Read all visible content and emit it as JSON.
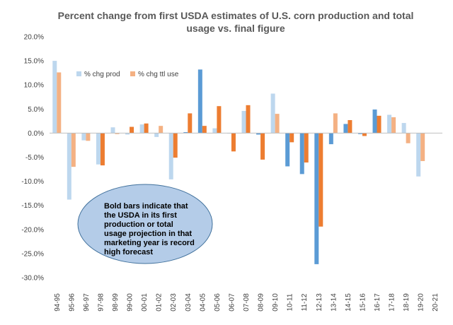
{
  "chart_data": {
    "type": "bar",
    "title_lines": [
      "Percent change from first USDA estimates of U.S. corn production and total",
      "usage vs. final figure"
    ],
    "categories": [
      "94-95",
      "95-96",
      "96-97",
      "97-98",
      "98-99",
      "99-00",
      "00-01",
      "01-02",
      "02-03",
      "03-04",
      "04-05",
      "05-06",
      "06-07",
      "07-08",
      "08-09",
      "09-10",
      "10-11",
      "11-12",
      "12-13",
      "13-14",
      "14-15",
      "15-16",
      "16-17",
      "17-18",
      "18-19",
      "19-20",
      "20-21"
    ],
    "series": [
      {
        "name": "% chg prod",
        "color_light": "#bdd7ee",
        "color_bold": "#5b9bd5",
        "values": [
          15.0,
          -13.8,
          -1.5,
          -6.5,
          1.2,
          -0.3,
          1.8,
          -0.8,
          -9.6,
          0.2,
          13.2,
          1.0,
          -0.1,
          4.6,
          -0.3,
          8.2,
          -6.9,
          -8.5,
          -27.2,
          -2.3,
          1.9,
          -0.2,
          4.9,
          3.8,
          2.1,
          -9.0,
          0.0
        ],
        "bold": [
          false,
          false,
          false,
          false,
          false,
          false,
          false,
          false,
          false,
          true,
          true,
          false,
          false,
          false,
          true,
          false,
          true,
          true,
          true,
          true,
          true,
          true,
          true,
          false,
          false,
          false,
          false
        ]
      },
      {
        "name": "% chg ttl use",
        "color_light": "#f4b183",
        "color_bold": "#ed7d31",
        "values": [
          12.6,
          -7.0,
          -1.6,
          -6.7,
          -0.2,
          1.3,
          2.0,
          1.5,
          -5.1,
          4.1,
          1.5,
          5.6,
          -3.8,
          5.8,
          -5.5,
          4.0,
          -1.9,
          -6.1,
          -19.4,
          4.1,
          2.7,
          -0.6,
          3.6,
          3.3,
          -2.1,
          -5.8,
          0.0
        ],
        "bold": [
          false,
          false,
          false,
          true,
          false,
          true,
          true,
          false,
          true,
          true,
          true,
          true,
          true,
          true,
          true,
          false,
          true,
          true,
          true,
          false,
          true,
          true,
          true,
          false,
          false,
          false,
          false
        ]
      }
    ],
    "ylim": [
      -30,
      20
    ],
    "ytick_step": 5,
    "ytick_labels": [
      "20.0%",
      "15.0%",
      "10.0%",
      "5.0%",
      "0.0%",
      "-5.0%",
      "-10.0%",
      "-15.0%",
      "-20.0%",
      "-25.0%",
      "-30.0%"
    ],
    "grid": false,
    "legend_placement": "top-left",
    "annotation": {
      "lines": [
        "Bold bars indicate that",
        "the USDA in its first",
        "production or total",
        "usage projection in that",
        "marketing year is record",
        "high forecast"
      ],
      "fill": "#b4cce8",
      "stroke": "#41719c"
    }
  }
}
